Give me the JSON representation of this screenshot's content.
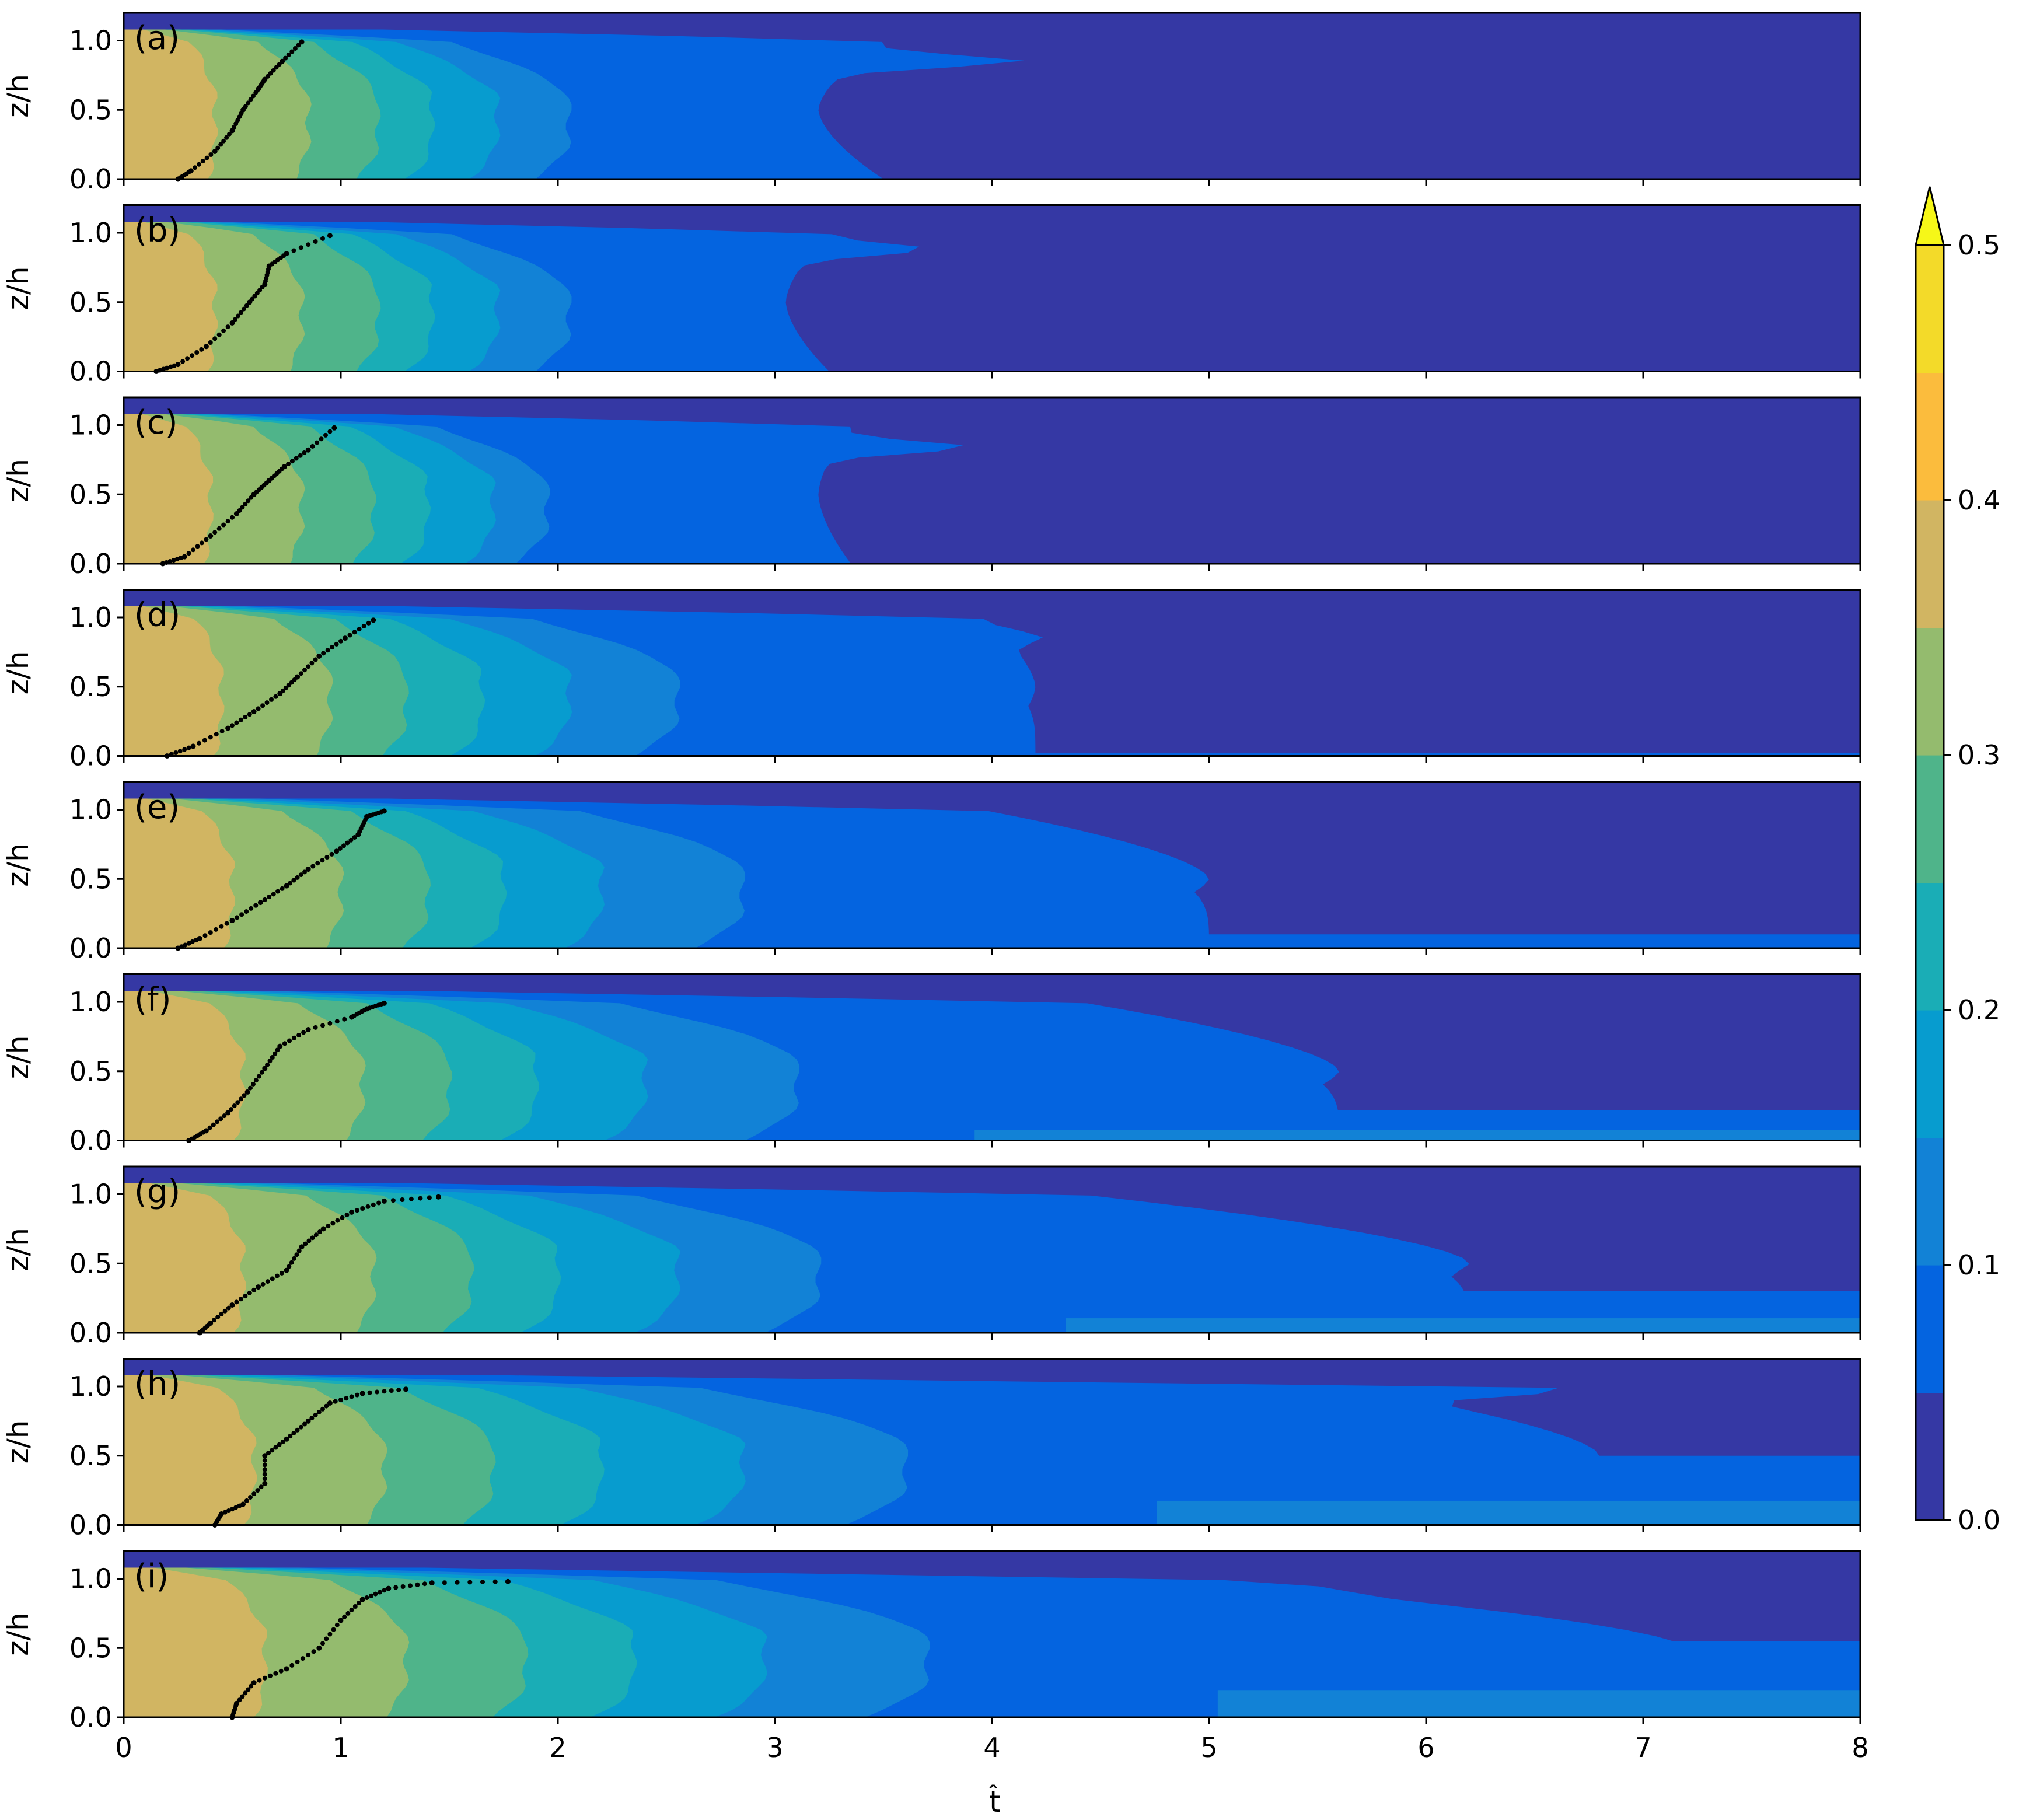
{
  "chart_data": {
    "type": "contourf",
    "xlabel": "t̂",
    "ylabel": "z/h",
    "xlim": [
      0,
      8
    ],
    "ylim": [
      0,
      1.2
    ],
    "x_ticks": [
      "0",
      "1",
      "2",
      "3",
      "4",
      "5",
      "6",
      "7",
      "8"
    ],
    "y_ticks": [
      "0.0",
      "0.5",
      "1.0"
    ],
    "colorbar": {
      "levels": [
        0.0,
        0.05,
        0.1,
        0.15,
        0.2,
        0.25,
        0.3,
        0.35,
        0.4,
        0.45,
        0.5
      ],
      "ticks": [
        "0.0",
        "0.1",
        "0.2",
        "0.3",
        "0.4",
        "0.5"
      ],
      "extend": "max",
      "colors": [
        "#3538a4",
        "#0464e0",
        "#1282d6",
        "#079ccf",
        "#1aadb6",
        "#4fb48a",
        "#94bb6e",
        "#d1b562",
        "#fbbc3d",
        "#f3da29",
        "#f6f718"
      ]
    },
    "panels": [
      {
        "label": "(a)",
        "t_edges": [
          0.42,
          0.85,
          1.17,
          1.42,
          1.72,
          2.05,
          3.2
        ],
        "tip_t": 3.98,
        "tip_z": 0.85,
        "bump_t": 3.5,
        "floor": 0.0,
        "front": [
          [
            0.25,
            0.0
          ],
          [
            0.31,
            0.06
          ],
          [
            0.42,
            0.2
          ],
          [
            0.5,
            0.35
          ],
          [
            0.55,
            0.5
          ],
          [
            0.62,
            0.65
          ],
          [
            0.65,
            0.72
          ],
          [
            0.73,
            0.85
          ],
          [
            0.82,
            0.99
          ]
        ]
      },
      {
        "label": "(b)",
        "t_edges": [
          0.42,
          0.82,
          1.17,
          1.42,
          1.72,
          2.05,
          3.05
        ],
        "tip_t": 3.58,
        "tip_z": 0.88,
        "bump_t": 3.25,
        "floor": 0.0,
        "front": [
          [
            0.15,
            0.0
          ],
          [
            0.25,
            0.05
          ],
          [
            0.38,
            0.18
          ],
          [
            0.5,
            0.35
          ],
          [
            0.58,
            0.5
          ],
          [
            0.65,
            0.63
          ],
          [
            0.67,
            0.76
          ],
          [
            0.75,
            0.85
          ],
          [
            0.95,
            0.98
          ]
        ]
      },
      {
        "label": "(c)",
        "t_edges": [
          0.4,
          0.82,
          1.15,
          1.4,
          1.7,
          1.95,
          3.2
        ],
        "tip_t": 3.82,
        "tip_z": 0.84,
        "bump_t": 3.35,
        "floor": 0.0,
        "front": [
          [
            0.18,
            0.0
          ],
          [
            0.28,
            0.05
          ],
          [
            0.4,
            0.2
          ],
          [
            0.52,
            0.36
          ],
          [
            0.6,
            0.5
          ],
          [
            0.67,
            0.6
          ],
          [
            0.74,
            0.7
          ],
          [
            0.85,
            0.82
          ],
          [
            0.97,
            0.98
          ]
        ]
      },
      {
        "label": "(d)",
        "t_edges": [
          0.45,
          0.95,
          1.3,
          1.65,
          2.05,
          2.55,
          4.2
        ],
        "tip_t": 4.38,
        "tip_z": 0.86,
        "bump_t": 3.95,
        "floor": 0.02,
        "front": [
          [
            0.2,
            0.0
          ],
          [
            0.32,
            0.07
          ],
          [
            0.48,
            0.2
          ],
          [
            0.6,
            0.32
          ],
          [
            0.72,
            0.45
          ],
          [
            0.8,
            0.57
          ],
          [
            0.9,
            0.72
          ],
          [
            1.02,
            0.85
          ],
          [
            1.15,
            0.98
          ]
        ]
      },
      {
        "label": "(e)",
        "t_edges": [
          0.5,
          1.0,
          1.4,
          1.75,
          2.2,
          2.85,
          5.0
        ],
        "tip_t": 4.9,
        "tip_z": 0.88,
        "bump_t": 3.95,
        "floor": 0.1,
        "front": [
          [
            0.25,
            0.0
          ],
          [
            0.35,
            0.07
          ],
          [
            0.5,
            0.2
          ],
          [
            0.63,
            0.33
          ],
          [
            0.75,
            0.45
          ],
          [
            0.85,
            0.57
          ],
          [
            0.98,
            0.7
          ],
          [
            1.08,
            0.82
          ],
          [
            1.12,
            0.95
          ],
          [
            1.2,
            0.99
          ]
        ]
      },
      {
        "label": "(f)",
        "t_edges": [
          0.55,
          1.1,
          1.5,
          1.9,
          2.4,
          3.1,
          5.6
        ],
        "tip_t": 4.85,
        "tip_z": 0.85,
        "bump_t": 4.4,
        "floor": 0.22,
        "front": [
          [
            0.3,
            0.0
          ],
          [
            0.38,
            0.07
          ],
          [
            0.48,
            0.2
          ],
          [
            0.57,
            0.35
          ],
          [
            0.65,
            0.52
          ],
          [
            0.72,
            0.68
          ],
          [
            0.85,
            0.8
          ],
          [
            1.05,
            0.89
          ],
          [
            1.12,
            0.95
          ],
          [
            1.2,
            0.99
          ]
        ]
      },
      {
        "label": "(g)",
        "t_edges": [
          0.55,
          1.15,
          1.6,
          2.0,
          2.55,
          3.2,
          6.2
        ],
        "tip_t": 6.0,
        "tip_z": 0.98,
        "bump_t": 4.4,
        "floor": 0.3,
        "front": [
          [
            0.35,
            0.0
          ],
          [
            0.4,
            0.07
          ],
          [
            0.5,
            0.2
          ],
          [
            0.62,
            0.33
          ],
          [
            0.75,
            0.45
          ],
          [
            0.82,
            0.62
          ],
          [
            0.92,
            0.75
          ],
          [
            1.05,
            0.87
          ],
          [
            1.2,
            0.95
          ],
          [
            1.45,
            0.98
          ]
        ]
      },
      {
        "label": "(h)",
        "t_edges": [
          0.6,
          1.2,
          1.7,
          2.2,
          2.85,
          3.6,
          6.8
        ],
        "tip_t": 7.8,
        "tip_z": 0.98,
        "bump_t": 5.6,
        "floor": 0.5,
        "front": [
          [
            0.42,
            0.0
          ],
          [
            0.45,
            0.08
          ],
          [
            0.55,
            0.15
          ],
          [
            0.65,
            0.3
          ],
          [
            0.65,
            0.5
          ],
          [
            0.75,
            0.62
          ],
          [
            0.85,
            0.75
          ],
          [
            0.95,
            0.88
          ],
          [
            1.1,
            0.95
          ],
          [
            1.3,
            0.98
          ]
        ]
      },
      {
        "label": "(i)",
        "t_edges": [
          0.65,
          1.3,
          1.85,
          2.35,
          2.95,
          3.7,
          7.2
        ],
        "tip_t": 7.5,
        "tip_z": 0.95,
        "bump_t": 4.8,
        "floor": 0.55,
        "front": [
          [
            0.5,
            0.0
          ],
          [
            0.52,
            0.1
          ],
          [
            0.6,
            0.25
          ],
          [
            0.75,
            0.35
          ],
          [
            0.9,
            0.5
          ],
          [
            1.0,
            0.7
          ],
          [
            1.1,
            0.85
          ],
          [
            1.22,
            0.93
          ],
          [
            1.42,
            0.97
          ],
          [
            1.77,
            0.98
          ]
        ]
      }
    ]
  }
}
